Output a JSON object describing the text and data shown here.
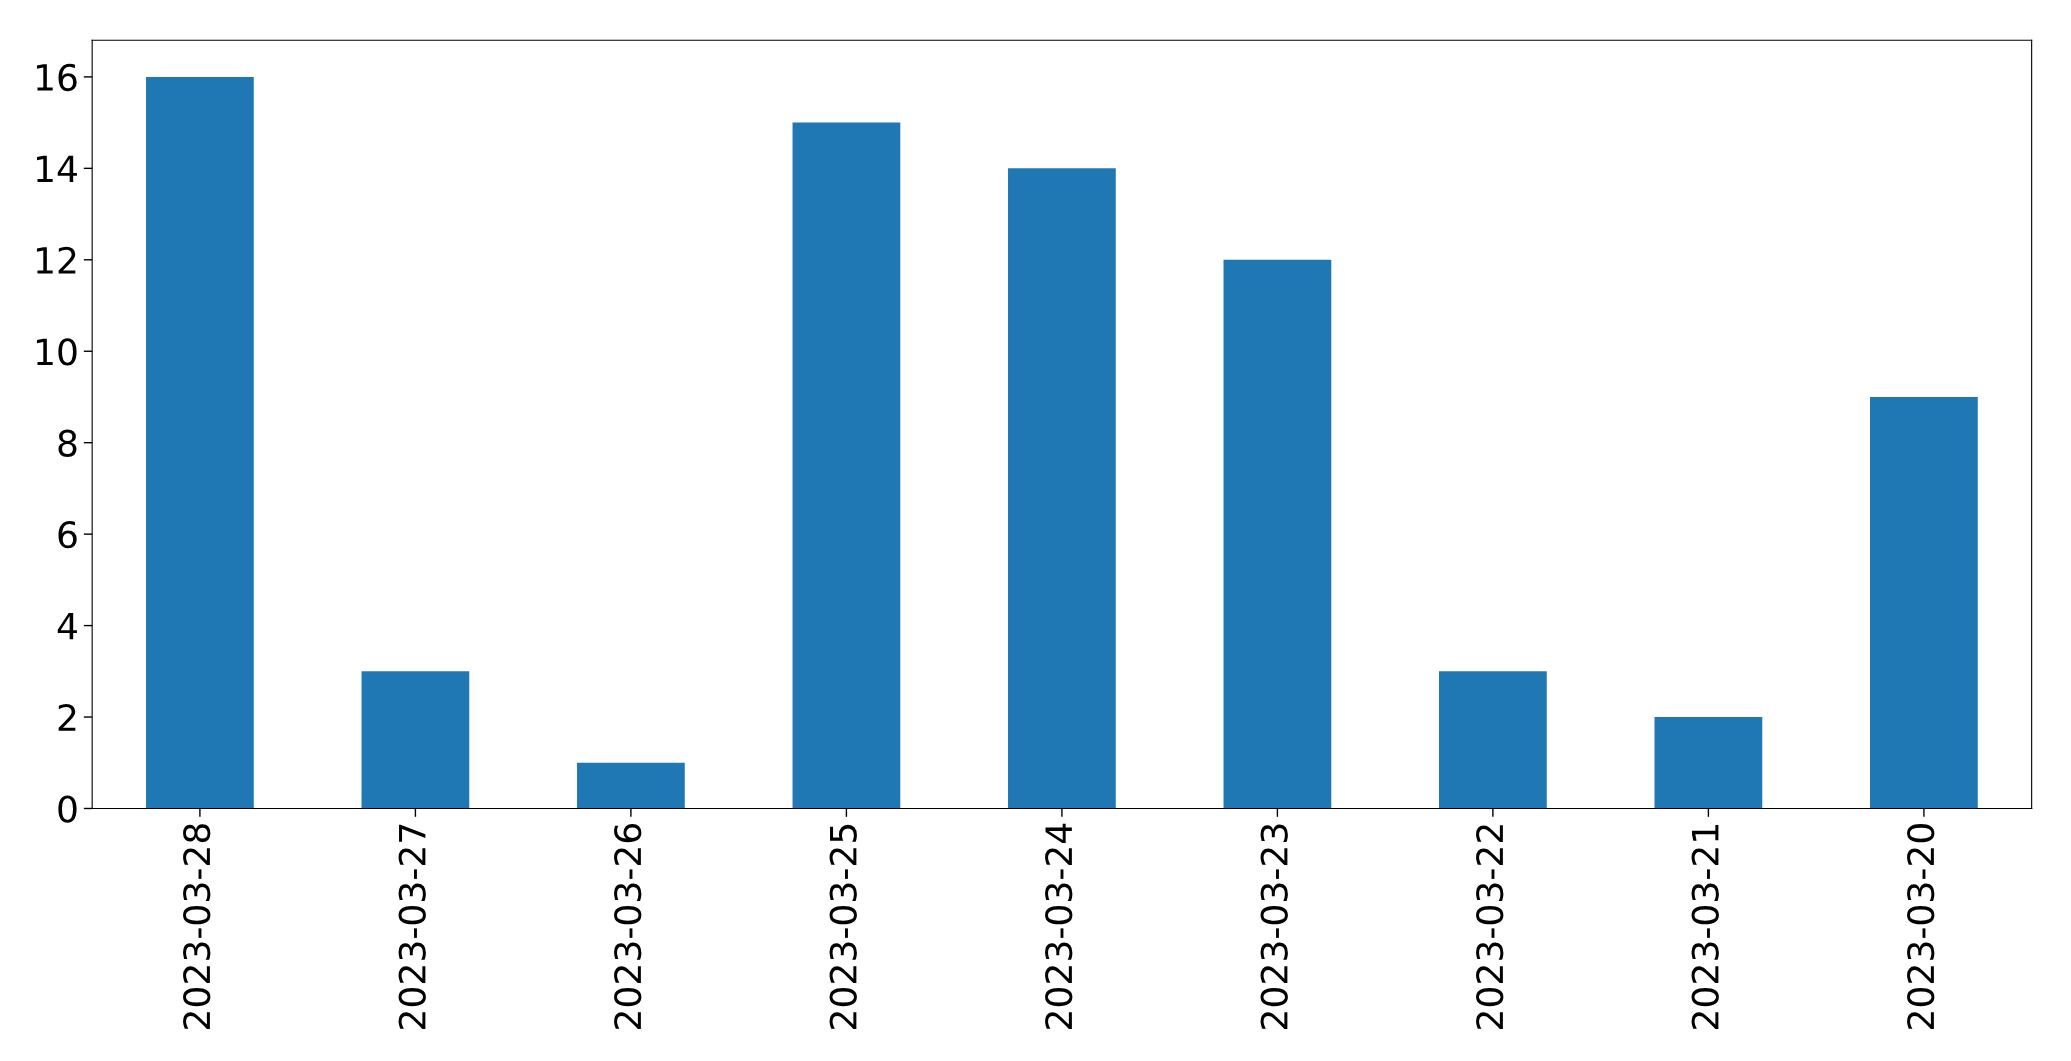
{
  "chart_data": {
    "type": "bar",
    "categories": [
      "2023-03-28",
      "2023-03-27",
      "2023-03-26",
      "2023-03-25",
      "2023-03-24",
      "2023-03-23",
      "2023-03-22",
      "2023-03-21",
      "2023-03-20"
    ],
    "values": [
      16,
      3,
      1,
      15,
      14,
      12,
      3,
      2,
      9
    ],
    "color": "#1f77b4",
    "ylim": [
      0,
      16.8
    ],
    "yticks": [
      0,
      2,
      4,
      6,
      8,
      10,
      12,
      14,
      16
    ],
    "grid": false
  }
}
